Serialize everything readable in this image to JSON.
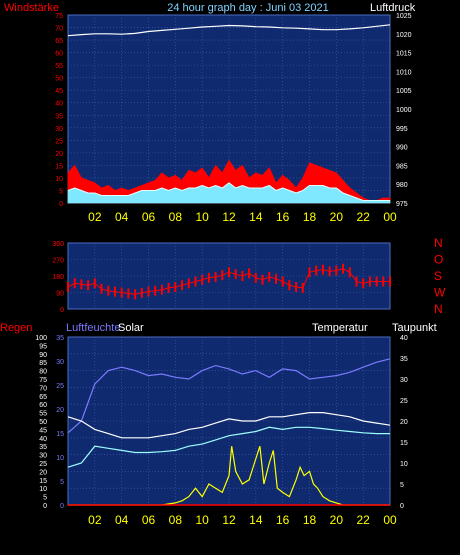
{
  "header": {
    "left_label": "Windstärke",
    "title": "24 hour graph day : Juni 03 2021",
    "right_label": "Luftdruck"
  },
  "colors": {
    "background": "#000000",
    "plot_bg": "#0f2a6e",
    "grid": "#3f5fae",
    "wind_gust": "#ff0000",
    "wind_avg": "#e0ffff",
    "pressure": "#ffffff",
    "direction": "#ff0000",
    "temperature": "#ffffff",
    "humidity": "#7a7aff",
    "dewpoint": "#9fffff",
    "solar": "#ffff00",
    "rain": "#ff0000",
    "time_labels": "#ffff00",
    "left_red_labels": "#ff0000",
    "middle_blue_labels": "#7a7aff"
  },
  "chart_data": [
    {
      "type": "line",
      "x_ticks": [
        "02",
        "04",
        "06",
        "08",
        "10",
        "12",
        "14",
        "16",
        "18",
        "20",
        "22",
        "00"
      ],
      "left_axis": {
        "title": "Windstärke",
        "ticks": [
          "0",
          "5",
          "10",
          "15",
          "20",
          "25",
          "30",
          "35",
          "40",
          "45",
          "50",
          "55",
          "60",
          "65",
          "70",
          "75"
        ],
        "ylim": [
          0,
          75
        ]
      },
      "right_axis": {
        "title": "Luftdruck",
        "ticks": [
          "975",
          "980",
          "985",
          "990",
          "995",
          "1000",
          "1005",
          "1010",
          "1015",
          "1020",
          "1025"
        ],
        "ylim": [
          975,
          1025
        ]
      },
      "series": [
        {
          "role": "pressure",
          "axis": "right",
          "x": [
            0,
            1,
            2,
            3,
            4,
            5,
            6,
            7,
            8,
            9,
            10,
            11,
            12,
            13,
            14,
            15,
            16,
            17,
            18,
            19,
            20,
            21,
            22,
            23,
            24
          ],
          "values": [
            1019.5,
            1019.8,
            1020.0,
            1020.0,
            1019.9,
            1020.1,
            1020.6,
            1020.9,
            1021.2,
            1021.5,
            1021.8,
            1022.0,
            1022.2,
            1022.1,
            1021.9,
            1021.8,
            1021.6,
            1021.5,
            1021.3,
            1021.1,
            1021.1,
            1021.3,
            1021.6,
            1022.0,
            1022.4
          ]
        },
        {
          "role": "wind-gust",
          "axis": "left",
          "x": [
            0,
            0.5,
            1,
            1.5,
            2,
            2.5,
            3,
            3.5,
            4,
            4.5,
            5,
            5.5,
            6,
            6.5,
            7,
            7.5,
            8,
            8.5,
            9,
            9.5,
            10,
            10.5,
            11,
            11.5,
            12,
            12.5,
            13,
            13.5,
            14,
            14.5,
            15,
            15.5,
            16,
            16.5,
            17,
            17.5,
            18,
            18.5,
            19,
            19.5,
            20,
            20.5,
            21,
            21.5,
            22,
            22.5,
            23,
            23.5,
            24
          ],
          "values": [
            12,
            15,
            10,
            9,
            8,
            6,
            7,
            5,
            6,
            5,
            6,
            7,
            8,
            9,
            12,
            10,
            11,
            9,
            13,
            12,
            14,
            10,
            15,
            12,
            17,
            13,
            15,
            10,
            12,
            11,
            14,
            8,
            11,
            9,
            6,
            10,
            16,
            15,
            14,
            13,
            12,
            9,
            6,
            4,
            2,
            1,
            1,
            2,
            2
          ]
        },
        {
          "role": "wind-average",
          "axis": "left",
          "x": [
            0,
            0.5,
            1,
            1.5,
            2,
            2.5,
            3,
            3.5,
            4,
            4.5,
            5,
            5.5,
            6,
            6.5,
            7,
            7.5,
            8,
            8.5,
            9,
            9.5,
            10,
            10.5,
            11,
            11.5,
            12,
            12.5,
            13,
            13.5,
            14,
            14.5,
            15,
            15.5,
            16,
            16.5,
            17,
            17.5,
            18,
            18.5,
            19,
            19.5,
            20,
            20.5,
            21,
            21.5,
            22,
            22.5,
            23,
            23.5,
            24
          ],
          "values": [
            5,
            6,
            5,
            4,
            4,
            3,
            3,
            3,
            3,
            3,
            4,
            5,
            5,
            5,
            6,
            5,
            6,
            5,
            6,
            6,
            7,
            6,
            7,
            6,
            8,
            6,
            7,
            6,
            6,
            6,
            7,
            5,
            6,
            5,
            4,
            5,
            7,
            7,
            7,
            6,
            6,
            4,
            3,
            2,
            1,
            1,
            1,
            1,
            1
          ]
        }
      ]
    },
    {
      "type": "scatter",
      "x_ticks": [],
      "left_axis": {
        "ticks": [
          "0",
          "90",
          "180",
          "270",
          "360"
        ],
        "ylim": [
          0,
          360
        ]
      },
      "right_axis": {
        "ticks": [
          "N",
          "W",
          "S",
          "O",
          "N"
        ]
      },
      "series": [
        {
          "role": "wind-direction",
          "x": [
            0,
            0.5,
            1,
            1.5,
            2,
            2.5,
            3,
            3.5,
            4,
            4.5,
            5,
            5.5,
            6,
            6.5,
            7,
            7.5,
            8,
            8.5,
            9,
            9.5,
            10,
            10.5,
            11,
            11.5,
            12,
            12.5,
            13,
            13.5,
            14,
            14.5,
            15,
            15.5,
            16,
            16.5,
            17,
            17.5,
            18,
            18.5,
            19,
            19.5,
            20,
            20.5,
            21,
            21.5,
            22,
            22.5,
            23,
            23.5,
            24
          ],
          "values": [
            120,
            140,
            135,
            130,
            140,
            110,
            100,
            95,
            90,
            85,
            80,
            88,
            95,
            100,
            105,
            115,
            120,
            130,
            140,
            150,
            160,
            170,
            175,
            185,
            200,
            190,
            180,
            195,
            170,
            160,
            175,
            165,
            150,
            130,
            120,
            115,
            200,
            210,
            215,
            205,
            210,
            220,
            200,
            150,
            140,
            150,
            150,
            150,
            150
          ]
        }
      ]
    },
    {
      "type": "line",
      "x_ticks": [
        "02",
        "04",
        "06",
        "08",
        "10",
        "12",
        "14",
        "16",
        "18",
        "20",
        "22",
        "00"
      ],
      "left_axis": {
        "title": "Regen",
        "ticks": [
          "0",
          "5",
          "10",
          "15",
          "20",
          "25",
          "30",
          "35",
          "40",
          "45",
          "50",
          "55",
          "60",
          "65",
          "70",
          "75",
          "80",
          "85",
          "90",
          "95",
          "100"
        ],
        "ylim": [
          0,
          100
        ]
      },
      "left_axis_2": {
        "title": "Luftfeuchte",
        "ticks": [
          "0",
          "5",
          "10",
          "15",
          "20",
          "25",
          "30",
          "35"
        ],
        "ylim": [
          0,
          35
        ]
      },
      "right_axis": {
        "title": "Taupunkt",
        "ticks": [
          "0",
          "5",
          "10",
          "15",
          "20",
          "25",
          "30",
          "35",
          "40"
        ],
        "ylim": [
          0,
          40
        ]
      },
      "labels": {
        "solar": "Solar",
        "temperature": "Temperatur"
      },
      "series": [
        {
          "role": "humidity",
          "x": [
            0,
            1,
            2,
            3,
            4,
            5,
            6,
            7,
            8,
            9,
            10,
            11,
            12,
            13,
            14,
            15,
            16,
            17,
            18,
            19,
            20,
            21,
            22,
            23,
            24
          ],
          "values": [
            43,
            50,
            72,
            80,
            82,
            80,
            77,
            78,
            76,
            75,
            80,
            83,
            81,
            78,
            80,
            76,
            81,
            80,
            75,
            76,
            77,
            79,
            82,
            85,
            87
          ]
        },
        {
          "role": "temperature",
          "x": [
            0,
            1,
            2,
            3,
            4,
            5,
            6,
            7,
            8,
            9,
            10,
            11,
            12,
            13,
            14,
            15,
            16,
            17,
            18,
            19,
            20,
            21,
            22,
            23,
            24
          ],
          "values": [
            21,
            20,
            18,
            17,
            16,
            16,
            16,
            16.5,
            17,
            18,
            18.5,
            19.5,
            20.5,
            20,
            20,
            21,
            21,
            21.5,
            22,
            22,
            21.5,
            21,
            20,
            19.5,
            19
          ]
        },
        {
          "role": "dewpoint",
          "x": [
            0,
            1,
            2,
            3,
            4,
            5,
            6,
            7,
            8,
            9,
            10,
            11,
            12,
            13,
            14,
            15,
            16,
            17,
            18,
            19,
            20,
            21,
            22,
            23,
            24
          ],
          "values": [
            9,
            10,
            14,
            13.5,
            13,
            12.5,
            12.5,
            12.7,
            13,
            14,
            14.5,
            15.5,
            16.5,
            17,
            17.5,
            18.5,
            18,
            18.5,
            18.5,
            18.2,
            17.8,
            17.5,
            17.2,
            17,
            17
          ]
        },
        {
          "role": "solar",
          "x": [
            0,
            2,
            4,
            5.5,
            6,
            7,
            8,
            8.5,
            9,
            9.5,
            10,
            10.5,
            11,
            11.5,
            12,
            12.2,
            12.5,
            13,
            13.5,
            14,
            14.3,
            14.6,
            15,
            15.3,
            15.6,
            16,
            16.5,
            17,
            17.3,
            17.6,
            18,
            18.3,
            18.6,
            19,
            19.5,
            20,
            20.5,
            21,
            22,
            24
          ],
          "values": [
            0,
            0,
            0,
            0,
            0,
            0,
            0.5,
            1,
            2,
            4,
            2,
            5,
            4,
            3,
            7,
            14,
            8,
            5,
            6,
            11,
            14,
            5,
            10,
            13,
            4,
            3,
            2,
            6,
            9,
            7,
            8,
            5,
            4,
            2,
            1,
            0.5,
            0,
            0,
            0,
            0
          ]
        },
        {
          "role": "rain",
          "x": [
            0,
            24
          ],
          "values": [
            0,
            0
          ]
        }
      ]
    }
  ]
}
